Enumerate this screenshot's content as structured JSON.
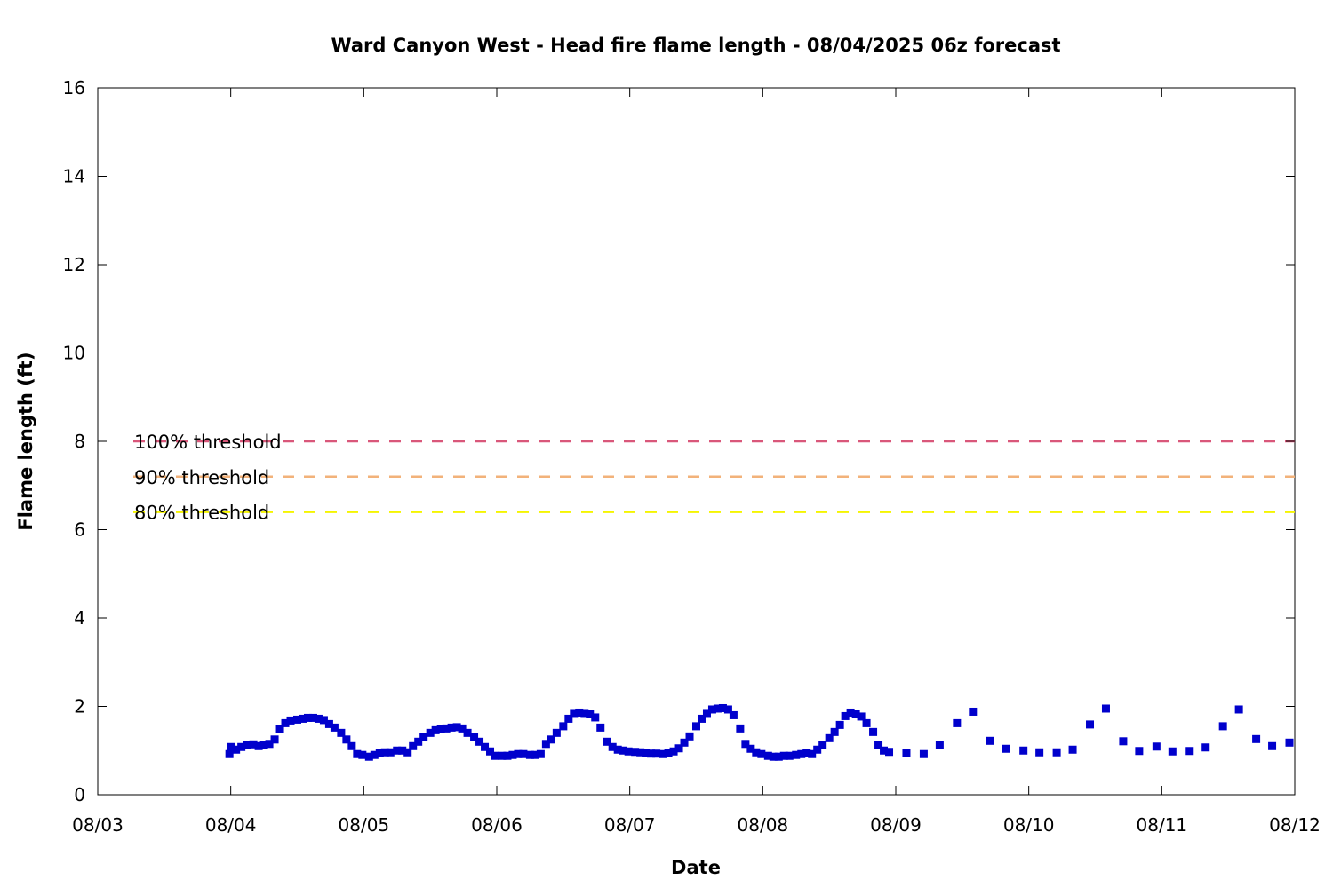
{
  "chart_data": {
    "type": "scatter",
    "title": "Ward Canyon West - Head fire flame length - 08/04/2025 06z forecast",
    "xlabel": "Date",
    "ylabel": "Flame length (ft)",
    "x_ticks": [
      "08/03",
      "08/04",
      "08/05",
      "08/06",
      "08/07",
      "08/08",
      "08/09",
      "08/10",
      "08/11",
      "08/12"
    ],
    "y_ticks": [
      "0",
      "2",
      "4",
      "6",
      "8",
      "10",
      "12",
      "14",
      "16"
    ],
    "xlim": [
      0,
      9
    ],
    "ylim": [
      0,
      16
    ],
    "grid": false,
    "marker_color": "#0000cc",
    "thresholds": [
      {
        "label": "100% threshold",
        "value": 8.0,
        "color": "#d9577a"
      },
      {
        "label": "90% threshold",
        "value": 7.2,
        "color": "#f2b27a"
      },
      {
        "label": "80% threshold",
        "value": 6.4,
        "color": "#f5f500"
      }
    ],
    "x_unit": "days since 08/03 00z",
    "x": [
      0.99,
      1.0,
      1.04,
      1.08,
      1.12,
      1.17,
      1.21,
      1.25,
      1.29,
      1.33,
      1.37,
      1.41,
      1.45,
      1.5,
      1.54,
      1.58,
      1.62,
      1.66,
      1.7,
      1.74,
      1.78,
      1.83,
      1.87,
      1.91,
      1.95,
      1.99,
      2.04,
      2.08,
      2.12,
      2.16,
      2.2,
      2.25,
      2.29,
      2.33,
      2.37,
      2.41,
      2.45,
      2.5,
      2.54,
      2.58,
      2.62,
      2.66,
      2.7,
      2.74,
      2.78,
      2.83,
      2.87,
      2.91,
      2.95,
      2.99,
      3.04,
      3.08,
      3.12,
      3.16,
      3.2,
      3.25,
      3.29,
      3.33,
      3.37,
      3.41,
      3.45,
      3.5,
      3.54,
      3.58,
      3.62,
      3.66,
      3.7,
      3.74,
      3.78,
      3.83,
      3.87,
      3.91,
      3.95,
      3.99,
      4.04,
      4.08,
      4.12,
      4.16,
      4.2,
      4.25,
      4.29,
      4.33,
      4.37,
      4.41,
      4.45,
      4.5,
      4.54,
      4.58,
      4.62,
      4.66,
      4.7,
      4.74,
      4.78,
      4.83,
      4.87,
      4.91,
      4.95,
      4.99,
      5.04,
      5.08,
      5.12,
      5.16,
      5.2,
      5.25,
      5.29,
      5.33,
      5.37,
      5.41,
      5.45,
      5.5,
      5.54,
      5.58,
      5.62,
      5.66,
      5.7,
      5.74,
      5.78,
      5.83,
      5.87,
      5.91,
      5.95,
      6.08,
      6.21,
      6.33,
      6.46,
      6.58,
      6.71,
      6.83,
      6.96,
      7.08,
      7.21,
      7.33,
      7.46,
      7.58,
      7.71,
      7.83,
      7.96,
      8.08,
      8.21,
      8.33,
      8.46,
      8.58,
      8.71,
      8.83,
      8.96
    ],
    "y": [
      0.92,
      1.08,
      1.02,
      1.08,
      1.13,
      1.14,
      1.1,
      1.13,
      1.15,
      1.25,
      1.48,
      1.62,
      1.68,
      1.7,
      1.72,
      1.74,
      1.74,
      1.72,
      1.69,
      1.6,
      1.52,
      1.4,
      1.25,
      1.1,
      0.92,
      0.9,
      0.86,
      0.9,
      0.94,
      0.96,
      0.96,
      1.0,
      1.0,
      0.96,
      1.1,
      1.2,
      1.3,
      1.4,
      1.46,
      1.48,
      1.5,
      1.52,
      1.53,
      1.5,
      1.4,
      1.3,
      1.2,
      1.08,
      0.98,
      0.88,
      0.88,
      0.88,
      0.9,
      0.92,
      0.92,
      0.9,
      0.9,
      0.92,
      1.15,
      1.25,
      1.4,
      1.55,
      1.72,
      1.85,
      1.86,
      1.85,
      1.82,
      1.75,
      1.52,
      1.2,
      1.08,
      1.02,
      1.0,
      0.98,
      0.97,
      0.96,
      0.94,
      0.93,
      0.93,
      0.92,
      0.94,
      0.98,
      1.05,
      1.18,
      1.32,
      1.55,
      1.72,
      1.85,
      1.93,
      1.95,
      1.96,
      1.93,
      1.8,
      1.5,
      1.15,
      1.04,
      0.96,
      0.92,
      0.88,
      0.86,
      0.86,
      0.88,
      0.88,
      0.9,
      0.92,
      0.94,
      0.92,
      1.02,
      1.13,
      1.28,
      1.42,
      1.58,
      1.78,
      1.86,
      1.83,
      1.77,
      1.62,
      1.42,
      1.12,
      1.0,
      0.97,
      0.94,
      0.92,
      1.12,
      1.62,
      1.88,
      1.22,
      1.04,
      1.0,
      0.96,
      0.96,
      1.02,
      1.59,
      1.95,
      1.21,
      0.99,
      1.09,
      0.98,
      0.99,
      1.07,
      1.55,
      1.93,
      1.26,
      1.1,
      1.18
    ]
  }
}
